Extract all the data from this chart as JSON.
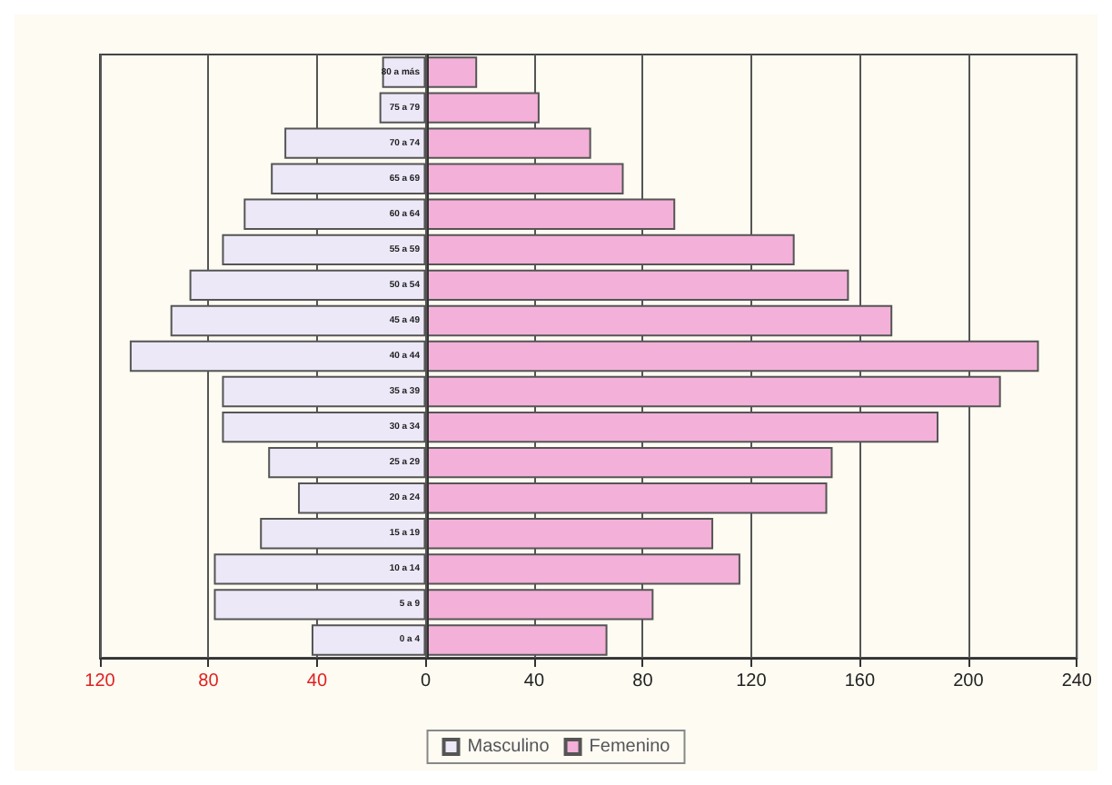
{
  "chart_data": {
    "type": "bar",
    "orientation": "horizontal",
    "categories": [
      "80 a más",
      "75 a 79",
      "70 a 74",
      "65 a 69",
      "60 a 64",
      "55 a 59",
      "50 a 54",
      "45 a 49",
      "40 a 44",
      "35 a 39",
      "30 a 34",
      "25 a 29",
      "20 a 24",
      "15 a 19",
      "10 a 14",
      "5 a 9",
      "0 a 4"
    ],
    "series": [
      {
        "name": "Masculino",
        "color": "#ece8f8",
        "values": [
          -16,
          -17,
          -52,
          -57,
          -67,
          -75,
          -87,
          -94,
          -109,
          -75,
          -75,
          -58,
          -47,
          -61,
          -78,
          -78,
          -42
        ]
      },
      {
        "name": "Femenino",
        "color": "#f3b0d8",
        "values": [
          19,
          42,
          61,
          73,
          92,
          136,
          156,
          172,
          226,
          212,
          189,
          150,
          148,
          106,
          116,
          84,
          67
        ]
      }
    ],
    "xlim": [
      -120,
      240
    ],
    "xticks": [
      {
        "value": -120,
        "label": "120"
      },
      {
        "value": -80,
        "label": "80"
      },
      {
        "value": -40,
        "label": "40"
      },
      0,
      40,
      80,
      120,
      160,
      200,
      240
    ],
    "grid": "x",
    "legend": "bottom",
    "stacked": true
  }
}
